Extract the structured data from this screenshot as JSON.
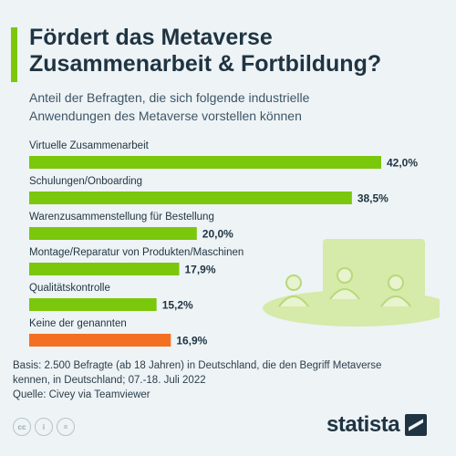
{
  "header": {
    "title_line1": "Fördert das Metaverse",
    "title_line2": "Zusammenarbeit & Fortbildung?",
    "subtitle_line1": "Anteil der Befragten, die sich folgende industrielle",
    "subtitle_line2": "Anwendungen des Metaverse vorstellen können"
  },
  "chart_data": {
    "type": "bar",
    "orientation": "horizontal",
    "title": "Fördert das Metaverse Zusammenarbeit & Fortbildung?",
    "subtitle": "Anteil der Befragten, die sich folgende industrielle Anwendungen des Metaverse vorstellen können",
    "unit": "%",
    "xlim": [
      0,
      42
    ],
    "grid": false,
    "legend": "none",
    "categories": [
      "Virtuelle Zusammenarbeit",
      "Schulungen/Onboarding",
      "Warenzusammenstellung für Bestellung",
      "Montage/Reparatur von Produkten/Maschinen",
      "Qualitätskontrolle",
      "Keine der genannten"
    ],
    "values": [
      42.0,
      38.5,
      20.0,
      17.9,
      15.2,
      16.9
    ],
    "value_labels": [
      "42,0%",
      "38,5%",
      "20,0%",
      "17,9%",
      "15,2%",
      "16,9%"
    ],
    "colors": [
      "#7ac70c",
      "#7ac70c",
      "#7ac70c",
      "#7ac70c",
      "#7ac70c",
      "#f36f21"
    ]
  },
  "footer": {
    "basis_line1": "Basis: 2.500 Befragte (ab 18 Jahren) in Deutschland, die den Begriff Metaverse",
    "basis_line2": "kennen, in Deutschland; 07.-18. Juli 2022",
    "source": "Quelle: Civey via Teamviewer",
    "logo": "statista",
    "license_icons": [
      "cc-icon",
      "by-icon",
      "nd-icon"
    ]
  }
}
